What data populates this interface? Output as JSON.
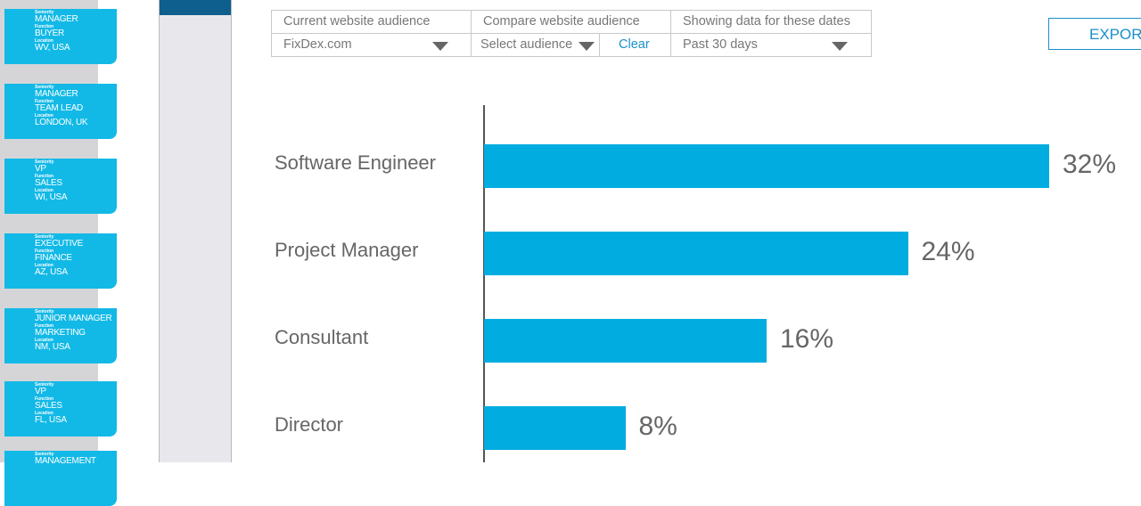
{
  "sidebar": {
    "cards": [
      {
        "seniority_label": "Seniority",
        "seniority": "MANAGER",
        "function_label": "Function",
        "function": "BUYER",
        "location_label": "Location",
        "location": "WV, USA"
      },
      {
        "seniority_label": "Seniority",
        "seniority": "MANAGER",
        "function_label": "Function",
        "function": "TEAM LEAD",
        "location_label": "Location",
        "location": "LONDON, UK"
      },
      {
        "seniority_label": "Seniority",
        "seniority": "VP",
        "function_label": "Function",
        "function": "SALES",
        "location_label": "Location",
        "location": "WI, USA"
      },
      {
        "seniority_label": "Seniority",
        "seniority": "EXECUTIVE",
        "function_label": "Function",
        "function": "FINANCE",
        "location_label": "Location",
        "location": "AZ, USA"
      },
      {
        "seniority_label": "Seniority",
        "seniority": "JUNIOR MANAGER",
        "function_label": "Function",
        "function": "MARKETING",
        "location_label": "Location",
        "location": "NM, USA"
      },
      {
        "seniority_label": "Seniority",
        "seniority": "VP",
        "function_label": "Function",
        "function": "SALES",
        "location_label": "Location",
        "location": "FL, USA"
      },
      {
        "seniority_label": "Seniority",
        "seniority": "MANAGEMENT",
        "function_label": "",
        "function": "",
        "location_label": "",
        "location": ""
      }
    ]
  },
  "filters": {
    "current_label": "Current website audience",
    "current_value": "FixDex.com",
    "compare_label": "Compare website audience",
    "compare_value": "Select audience",
    "clear": "Clear",
    "dates_label": "Showing data for these dates",
    "dates_value": "Past 30 days"
  },
  "export_label": "EXPORT",
  "colors": {
    "bar": "#00ace0",
    "card": "#13b9e6",
    "link": "#1a8fc9"
  },
  "chart_data": {
    "type": "bar",
    "orientation": "horizontal",
    "categories": [
      "Software Engineer",
      "Project Manager",
      "Consultant",
      "Director"
    ],
    "values": [
      32,
      24,
      16,
      8
    ],
    "value_labels": [
      "32%",
      "24%",
      "16%",
      "8%"
    ],
    "xlim": [
      0,
      32
    ],
    "grid": false
  }
}
